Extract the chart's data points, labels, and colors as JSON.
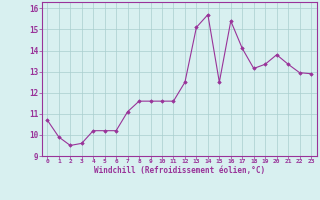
{
  "x": [
    0,
    1,
    2,
    3,
    4,
    5,
    6,
    7,
    8,
    9,
    10,
    11,
    12,
    13,
    14,
    15,
    16,
    17,
    18,
    19,
    20,
    21,
    22,
    23
  ],
  "y": [
    10.7,
    9.9,
    9.5,
    9.6,
    10.2,
    10.2,
    10.2,
    11.1,
    11.6,
    11.6,
    11.6,
    11.6,
    12.5,
    15.1,
    15.7,
    12.5,
    15.4,
    14.1,
    13.15,
    13.35,
    13.8,
    13.35,
    12.95,
    12.9
  ],
  "line_color": "#993399",
  "marker": "D",
  "markersize": 1.8,
  "linewidth": 0.8,
  "bg_color": "#d8f0f0",
  "grid_color": "#aacece",
  "xlabel": "Windchill (Refroidissement éolien,°C)",
  "xlabel_color": "#993399",
  "tick_color": "#993399",
  "xlim": [
    -0.5,
    23.5
  ],
  "ylim": [
    9.0,
    16.3
  ],
  "yticks": [
    9,
    10,
    11,
    12,
    13,
    14,
    15,
    16
  ],
  "xticks": [
    0,
    1,
    2,
    3,
    4,
    5,
    6,
    7,
    8,
    9,
    10,
    11,
    12,
    13,
    14,
    15,
    16,
    17,
    18,
    19,
    20,
    21,
    22,
    23
  ],
  "spine_color": "#993399"
}
